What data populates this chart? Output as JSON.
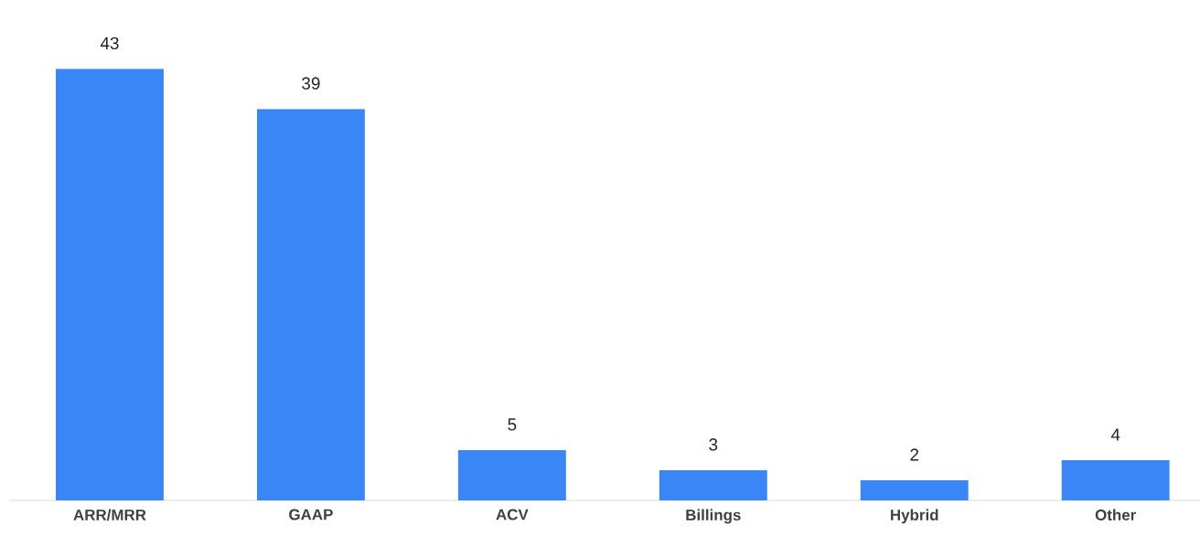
{
  "chart_data": {
    "type": "bar",
    "categories": [
      "ARR/MRR",
      "GAAP",
      "ACV",
      "Billings",
      "Hybrid",
      "Other"
    ],
    "values": [
      43,
      39,
      5,
      3,
      2,
      4
    ],
    "color": "#3b86f7",
    "data_labels": true
  }
}
